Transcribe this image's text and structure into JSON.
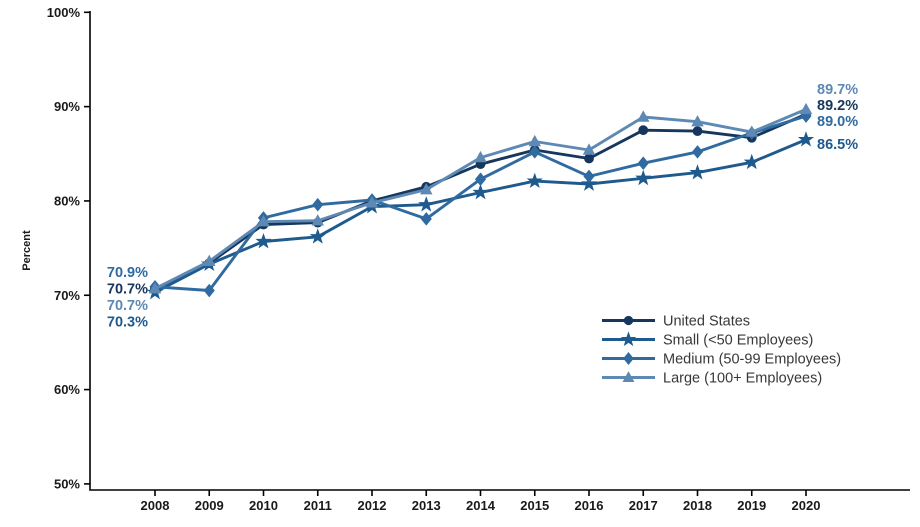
{
  "figure": {
    "background": "#ffffff",
    "axis_color": "#000000",
    "tick_label_color": "#1a1a1a",
    "legend_text_color": "#383838"
  },
  "chart_data": {
    "type": "line",
    "title": "",
    "xlabel": "",
    "ylabel": "Percent",
    "x": [
      2008,
      2009,
      2010,
      2011,
      2012,
      2013,
      2014,
      2015,
      2016,
      2017,
      2018,
      2019,
      2020
    ],
    "ylim": [
      50,
      100
    ],
    "yticks": [
      50,
      60,
      70,
      80,
      90,
      100
    ],
    "ytick_suffix": "%",
    "grid": false,
    "legend_position": "inside lower right",
    "series": [
      {
        "name": "United States",
        "marker": "circle",
        "color": "#17365D",
        "values": [
          70.7,
          73.4,
          77.5,
          77.7,
          80.0,
          81.5,
          83.9,
          85.4,
          84.5,
          87.5,
          87.4,
          86.7,
          89.2
        ]
      },
      {
        "name": "Small (<50 Employees)",
        "marker": "star",
        "color": "#1E5A8E",
        "values": [
          70.3,
          73.3,
          75.7,
          76.2,
          79.4,
          79.6,
          80.9,
          82.1,
          81.8,
          82.4,
          83.0,
          84.1,
          86.5
        ]
      },
      {
        "name": "Medium (50-99 Employees)",
        "marker": "diamond",
        "color": "#2F6BA0",
        "values": [
          70.9,
          70.5,
          78.2,
          79.6,
          80.1,
          78.1,
          82.3,
          85.2,
          82.6,
          84.0,
          85.2,
          87.2,
          89.0
        ]
      },
      {
        "name": "Large (100+ Employees)",
        "marker": "triangle",
        "color": "#5E89B4",
        "values": [
          70.7,
          73.6,
          77.8,
          77.9,
          79.8,
          81.2,
          84.6,
          86.3,
          85.4,
          88.9,
          88.4,
          87.3,
          89.7
        ]
      }
    ],
    "annotations": {
      "start": [
        {
          "text": "70.9%",
          "series": "Medium (50-99 Employees)"
        },
        {
          "text": "70.7%",
          "series": "United States"
        },
        {
          "text": "70.7%",
          "series": "Large (100+ Employees)"
        },
        {
          "text": "70.3%",
          "series": "Small (<50 Employees)"
        }
      ],
      "end": [
        {
          "text": "89.7%",
          "series": "Large (100+ Employees)"
        },
        {
          "text": "89.2%",
          "series": "United States"
        },
        {
          "text": "89.0%",
          "series": "Medium (50-99 Employees)"
        },
        {
          "text": "86.5%",
          "series": "Small (<50 Employees)"
        }
      ]
    }
  }
}
